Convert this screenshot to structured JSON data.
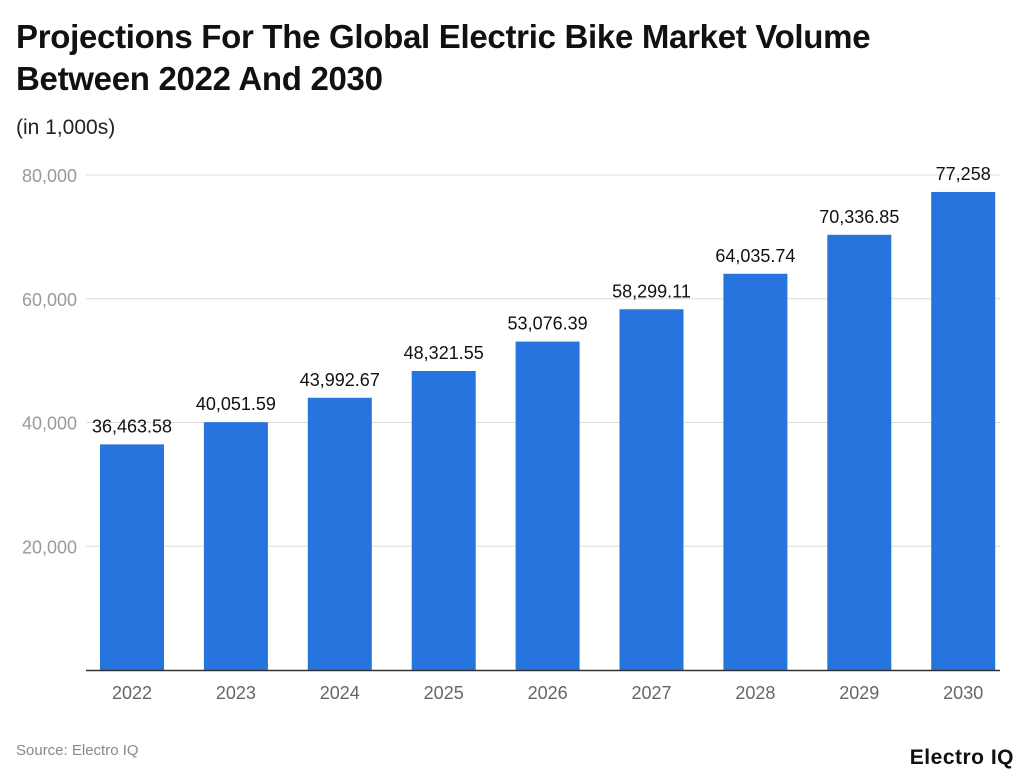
{
  "chart_data": {
    "type": "bar",
    "title": "Projections For The Global Electric Bike Market Volume Between 2022 And 2030",
    "subtitle": "(in 1,000s)",
    "categories": [
      "2022",
      "2023",
      "2024",
      "2025",
      "2026",
      "2027",
      "2028",
      "2029",
      "2030"
    ],
    "values": [
      36463.58,
      40051.59,
      43992.67,
      48321.55,
      53076.39,
      58299.11,
      64035.74,
      70336.85,
      77258
    ],
    "data_labels": [
      "36,463.58",
      "40,051.59",
      "43,992.67",
      "48,321.55",
      "53,076.39",
      "58,299.11",
      "64,035.74",
      "70,336.85",
      "77,258"
    ],
    "yticks": [
      20000,
      40000,
      60000,
      80000
    ],
    "ytick_labels": [
      "20,000",
      "40,000",
      "60,000",
      "80,000"
    ],
    "ylim": [
      0,
      80000
    ],
    "grid": true,
    "bar_color": "#2874DE",
    "xlabel": "",
    "ylabel": ""
  },
  "footer": {
    "source": "Source: Electro IQ",
    "logo": "Electro IQ"
  }
}
